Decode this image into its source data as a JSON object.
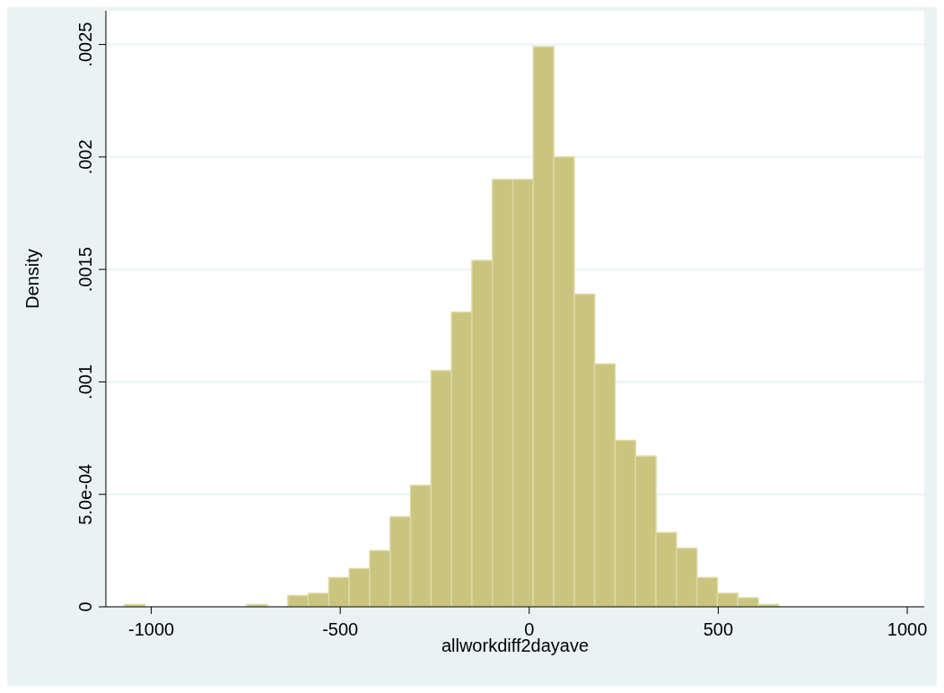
{
  "chart_data": {
    "type": "histogram",
    "xlabel": "allworkdiff2dayave",
    "ylabel": "Density",
    "bins": [
      -1071,
      -1016.9,
      -962.8,
      -908.7,
      -854.6,
      -800.5,
      -746.4,
      -692.3,
      -638.2,
      -584.1,
      -530,
      -475.9,
      -421.8,
      -367.7,
      -313.6,
      -259.5,
      -205.4,
      -151.3,
      -97.2,
      -43.1,
      11,
      65.1,
      119.2,
      173.3,
      227.4,
      281.5,
      335.6,
      389.7,
      443.8,
      497.9,
      552,
      606.1,
      660.2
    ],
    "values": [
      1e-05,
      0,
      0,
      0,
      0,
      0,
      1e-05,
      0,
      5e-05,
      6e-05,
      0.00013,
      0.00017,
      0.00025,
      0.0004,
      0.00054,
      0.00105,
      0.00131,
      0.00154,
      0.0019,
      0.0019,
      0.00249,
      0.002,
      0.00139,
      0.00108,
      0.00074,
      0.00067,
      0.00033,
      0.00026,
      0.00013,
      6e-05,
      4e-05,
      1e-05
    ],
    "color": "#cac47e",
    "xlim": [
      -1120,
      1045
    ],
    "xticks": [
      -1000,
      -500,
      0,
      500,
      1000
    ],
    "ylim": [
      0,
      0.00265
    ],
    "yticks": [
      0,
      {
        "value": 0.0005,
        "label": "5.0e-04"
      },
      {
        "value": 0.001,
        "label": ".001"
      },
      {
        "value": 0.0015,
        "label": ".0015"
      },
      {
        "value": 0.002,
        "label": ".002"
      },
      {
        "value": 0.0025,
        "label": ".0025"
      }
    ],
    "grid": "y"
  }
}
